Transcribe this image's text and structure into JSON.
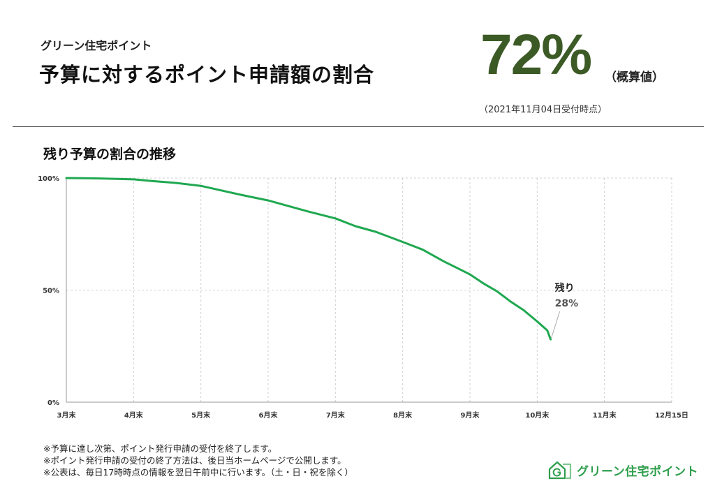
{
  "header": {
    "subtitle": "グリーン住宅ポイント",
    "title": "予算に対するポイント申請額の割合",
    "percent": "72%",
    "approx": "（概算値）",
    "as_of": "（2021年11月04日受付時点）"
  },
  "chart_heading": "残り予算の割合の推移",
  "chart_data": {
    "type": "line",
    "title": "残り予算の割合の推移",
    "xlabel": "",
    "ylabel": "",
    "ylim": [
      0,
      100
    ],
    "grid": true,
    "x_ticks": [
      "3月末",
      "4月末",
      "5月末",
      "6月末",
      "7月末",
      "8月末",
      "9月末",
      "10月末",
      "11月末",
      "12月15日"
    ],
    "y_ticks": [
      "0%",
      "50%",
      "100%"
    ],
    "y_tick_values": [
      0,
      50,
      100
    ],
    "series": [
      {
        "color": "#1fa850",
        "x": [
          0,
          0.5,
          1.0,
          1.3,
          1.6,
          2.0,
          2.3,
          2.6,
          3.0,
          3.3,
          3.6,
          4.0,
          4.3,
          4.6,
          5.0,
          5.3,
          5.6,
          5.9,
          6.0,
          6.2,
          6.4,
          6.6,
          6.8,
          7.0,
          7.15,
          7.2
        ],
        "y": [
          100,
          99.8,
          99.4,
          98.6,
          97.9,
          96.5,
          94.5,
          92.5,
          90,
          87.5,
          85,
          82,
          78.5,
          76,
          71.5,
          68,
          63,
          58.5,
          57,
          53,
          49.5,
          45,
          41,
          36,
          32,
          28
        ]
      }
    ],
    "annotations": [
      {
        "label": "残り",
        "value": "28%"
      }
    ]
  },
  "notes": [
    "※予算に達し次第、ポイント発行申請の受付を終了します。",
    "※ポイント発行申請の受付の終了方法は、後日当ホームページで公開します。",
    "※公表は、毎日17時時点の情報を翌日午前中に行います。（土・日・祝を除く）"
  ],
  "logo": {
    "text": "グリーン住宅ポイント",
    "icon": "house-g-icon"
  },
  "colors": {
    "accent": "#3c5a25",
    "line": "#1fa850",
    "grid": "#d0d0d0"
  }
}
